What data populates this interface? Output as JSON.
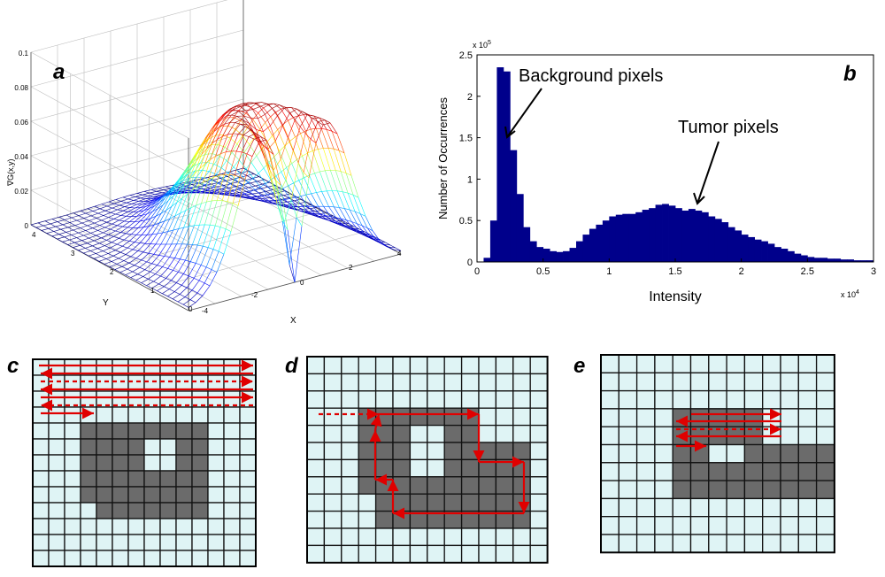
{
  "panels": {
    "a": {
      "letter": "a",
      "zlabel": "∇G(x,y)",
      "xlabel": "X",
      "ylabel": "Y",
      "z_ticks": [
        "0",
        "0.02",
        "0.04",
        "0.06",
        "0.08",
        "0.1"
      ],
      "x_ticks": [
        "-4",
        "-2",
        "0",
        "2",
        "4"
      ],
      "y_ticks": [
        "0",
        "1",
        "2",
        "3",
        "4"
      ]
    },
    "b": {
      "letter": "b",
      "annotations": {
        "background": "Background pixels",
        "tumor": "Tumor pixels"
      },
      "y_multiplier": "x 10^5",
      "x_multiplier": "x 10^4"
    },
    "c": {
      "letter": "c"
    },
    "d": {
      "letter": "d"
    },
    "e": {
      "letter": "e"
    }
  },
  "chart_data": {
    "type": "bar",
    "title": "",
    "xlabel": "Intensity",
    "ylabel": "Number of Occurrences",
    "xlim": [
      0,
      3
    ],
    "ylim": [
      0,
      2.5
    ],
    "x_ticks": [
      "0",
      "0.5",
      "1",
      "1.5",
      "2",
      "2.5",
      "3"
    ],
    "y_ticks": [
      "0",
      "0.5",
      "1",
      "1.5",
      "2",
      "2.5"
    ],
    "x_scale": "x 10^4",
    "y_scale": "x 10^5",
    "bin_width": 0.05,
    "values": [
      0.0,
      0.05,
      0.5,
      2.35,
      2.3,
      1.35,
      0.82,
      0.42,
      0.25,
      0.18,
      0.16,
      0.13,
      0.12,
      0.13,
      0.17,
      0.25,
      0.33,
      0.4,
      0.45,
      0.5,
      0.55,
      0.57,
      0.58,
      0.58,
      0.6,
      0.63,
      0.65,
      0.69,
      0.7,
      0.68,
      0.65,
      0.62,
      0.64,
      0.62,
      0.6,
      0.55,
      0.52,
      0.48,
      0.42,
      0.38,
      0.33,
      0.3,
      0.27,
      0.25,
      0.22,
      0.18,
      0.16,
      0.13,
      0.1,
      0.08,
      0.06,
      0.05,
      0.05,
      0.04,
      0.04,
      0.03,
      0.03,
      0.02,
      0.02,
      0.02
    ]
  }
}
